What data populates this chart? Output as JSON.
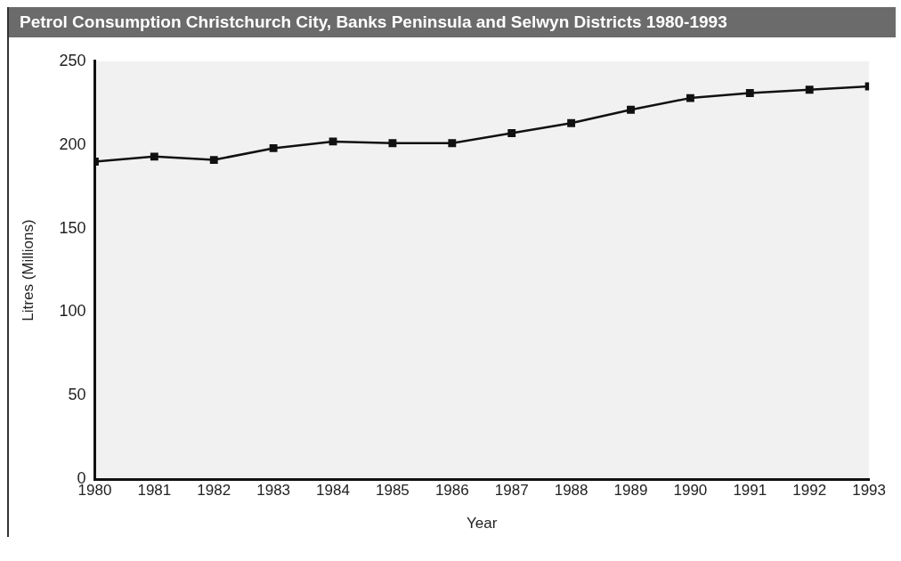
{
  "chart_data": {
    "type": "line",
    "title": "Petrol Consumption Christchurch City, Banks Peninsula and Selwyn Districts 1980-1993",
    "xlabel": "Year",
    "ylabel": "Litres (Millions)",
    "x": [
      1980,
      1981,
      1982,
      1983,
      1984,
      1985,
      1986,
      1987,
      1988,
      1989,
      1990,
      1991,
      1992,
      1993
    ],
    "series": [
      {
        "color": "#111111",
        "values": [
          190,
          193,
          191,
          198,
          202,
          201,
          201,
          207,
          213,
          221,
          228,
          231,
          233,
          235
        ]
      }
    ],
    "xlim": [
      1980,
      1993
    ],
    "xticks": [
      1980,
      1981,
      1982,
      1983,
      1984,
      1985,
      1986,
      1987,
      1988,
      1989,
      1990,
      1991,
      1992,
      1993
    ],
    "ylim": [
      0,
      250
    ],
    "yticks": [
      0,
      50,
      100,
      150,
      200,
      250
    ],
    "grid": false,
    "legend": false,
    "marker": "square",
    "line_style": "solid"
  }
}
